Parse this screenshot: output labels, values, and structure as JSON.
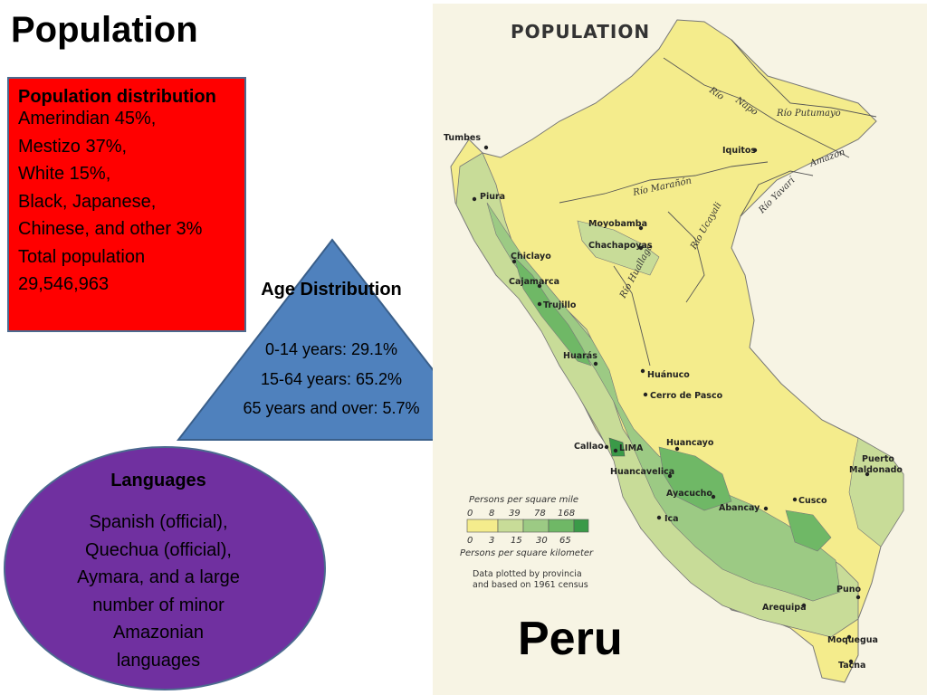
{
  "slide": {
    "title": "Population"
  },
  "population_distribution": {
    "heading": "Population distribution",
    "lines": [
      "Amerindian 45%,",
      "Mestizo 37%,",
      "White 15%,",
      "Black, Japanese,",
      "Chinese, and other 3%",
      "Total population",
      "29,546,963"
    ]
  },
  "age_distribution": {
    "heading": "Age Distribution",
    "lines": [
      "0-14 years: 29.1%",
      "15-64 years: 65.2%",
      "65 years and over: 5.7%"
    ]
  },
  "languages": {
    "heading": "Languages",
    "lines": [
      "Spanish (official),",
      "Quechua (official),",
      "Aymara, and a large",
      "number of minor",
      "Amazonian",
      "languages"
    ]
  },
  "map": {
    "title": "POPULATION",
    "country_label": "Peru",
    "rivers": [
      "Río",
      "Napo",
      "Río Putumayo",
      "Amazon",
      "Río Marañón",
      "Río Yavarí",
      "Río Ucayali",
      "Río Huallaga"
    ],
    "cities": [
      "Tumbes",
      "Iquitos",
      "Piura",
      "Moyobamba",
      "Chachapoyas",
      "Chiclayo",
      "Cajamarca",
      "Trujillo",
      "Huarás",
      "Huánuco",
      "Cerro de Pasco",
      "Callao",
      "LIMA",
      "Huancayo",
      "Huancavelica",
      "Ayacucho",
      "Abancay",
      "Cusco",
      "Ica",
      "Puerto",
      "Maldonado",
      "Puno",
      "Arequipa",
      "Moquegua",
      "Tacna"
    ],
    "legend": {
      "mile_title": "Persons per square mile",
      "mile_values": [
        "0",
        "8",
        "39",
        "78",
        "168"
      ],
      "km_values": [
        "0",
        "3",
        "15",
        "30",
        "65"
      ],
      "km_title": "Persons per square kilometer",
      "colors": [
        "#f4ec8c",
        "#c8dc98",
        "#9cca84",
        "#6fb866",
        "#3a9a48"
      ]
    },
    "note_lines": [
      "Data plotted by provincia",
      "and based on 1961 census"
    ]
  }
}
